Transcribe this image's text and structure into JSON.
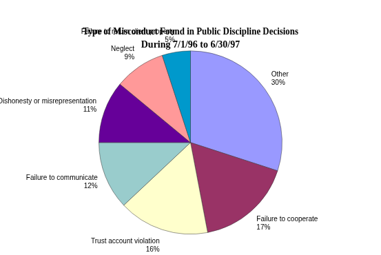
{
  "chart_data": {
    "type": "pie",
    "title": "Type of Misconduct Found in Public Discipline Decisions",
    "subtitle": "During 7/1/96 to 6/30/97",
    "categories": [
      "Other",
      "Failure to cooperate",
      "Trust account violation",
      "Failure to communicate",
      "Dishonesty or misrepresentation",
      "Neglect",
      "Failure to return client property"
    ],
    "values": [
      30,
      17,
      16,
      12,
      11,
      9,
      5
    ],
    "value_labels": [
      "30%",
      "17%",
      "16%",
      "12%",
      "11%",
      "9%",
      "5%"
    ],
    "colors": [
      "#9999ff",
      "#993366",
      "#ffffcc",
      "#99cccc",
      "#660099",
      "#ff9999",
      "#0099cc"
    ],
    "data_labels": true
  }
}
